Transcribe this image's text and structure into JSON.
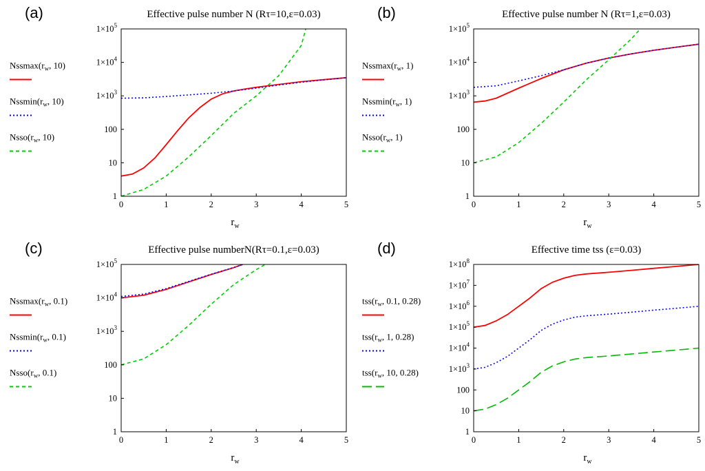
{
  "chart_data": [
    {
      "type": "line",
      "panel_label": "(a)",
      "title": "Effective pulse number N (Rτ=10,ε=0.03)",
      "xlabel": "r",
      "xlabel_sub": "w",
      "x_ticks": [
        "0",
        "1",
        "2",
        "3",
        "4",
        "5"
      ],
      "xlim": [
        0,
        5
      ],
      "y_scale": "log",
      "ylim": [
        1,
        100000
      ],
      "y_ticks": [
        {
          "main": "1",
          "exp": ""
        },
        {
          "main": "10",
          "exp": ""
        },
        {
          "main": "100",
          "exp": ""
        },
        {
          "main": "1×10",
          "exp": "3"
        },
        {
          "main": "1×10",
          "exp": "4"
        },
        {
          "main": "1×10",
          "exp": "5"
        }
      ],
      "grid": false,
      "legend_position": "left",
      "series": [
        {
          "name": "Nssmax",
          "args": ", 10)",
          "color": "#ff0000",
          "dash": "solid",
          "x": [
            0,
            0.25,
            0.5,
            0.75,
            1,
            1.25,
            1.5,
            1.75,
            2,
            2.25,
            2.5,
            2.75,
            3,
            3.5,
            4,
            4.5,
            5
          ],
          "y": [
            4,
            4.6,
            7,
            14,
            35,
            90,
            220,
            450,
            800,
            1150,
            1400,
            1600,
            1800,
            2200,
            2650,
            3050,
            3500
          ]
        },
        {
          "name": "Nssmin",
          "args": ", 10)",
          "color": "#0000ff",
          "dash": "dot",
          "x": [
            0,
            0.5,
            1,
            1.5,
            2,
            2.5,
            3,
            3.5,
            4,
            4.5,
            5
          ],
          "y": [
            850,
            870,
            960,
            1070,
            1200,
            1400,
            1700,
            2100,
            2550,
            3000,
            3500
          ]
        },
        {
          "name": "Nsso",
          "args": ", 10)",
          "color": "#00cc00",
          "dash": "dash",
          "x": [
            0,
            0.5,
            1,
            1.5,
            2,
            2.5,
            3,
            3.5,
            4,
            4.1
          ],
          "y": [
            1,
            1.6,
            4,
            15,
            65,
            300,
            1000,
            4000,
            32000,
            100000
          ]
        }
      ]
    },
    {
      "type": "line",
      "panel_label": "(b)",
      "title": "Effective pulse number N (Rτ=1,ε=0.03)",
      "xlabel": "r",
      "xlabel_sub": "w",
      "x_ticks": [
        "0",
        "1",
        "2",
        "3",
        "4",
        "5"
      ],
      "xlim": [
        0,
        5
      ],
      "y_scale": "log",
      "ylim": [
        1,
        100000
      ],
      "y_ticks": [
        {
          "main": "1",
          "exp": ""
        },
        {
          "main": "10",
          "exp": ""
        },
        {
          "main": "100",
          "exp": ""
        },
        {
          "main": "1×10",
          "exp": "3"
        },
        {
          "main": "1×10",
          "exp": "4"
        },
        {
          "main": "1×10",
          "exp": "5"
        }
      ],
      "grid": false,
      "legend_position": "left",
      "series": [
        {
          "name": "Nssmax",
          "args": ", 1)",
          "color": "#ff0000",
          "dash": "solid",
          "x": [
            0,
            0.25,
            0.5,
            1,
            1.5,
            2,
            2.5,
            3,
            3.5,
            4,
            4.5,
            5
          ],
          "y": [
            650,
            700,
            850,
            1700,
            3300,
            6000,
            9500,
            13500,
            18000,
            23000,
            28500,
            35000
          ]
        },
        {
          "name": "Nssmin",
          "args": ", 1)",
          "color": "#0000ff",
          "dash": "dot",
          "x": [
            0,
            0.5,
            1,
            1.5,
            2,
            2.5,
            3,
            3.5,
            4,
            4.5,
            5
          ],
          "y": [
            1800,
            2000,
            2800,
            4000,
            6000,
            9500,
            13500,
            18000,
            23000,
            28500,
            35000
          ]
        },
        {
          "name": "Nsso",
          "args": ", 1)",
          "color": "#00cc00",
          "dash": "dash",
          "x": [
            0,
            0.5,
            1,
            1.5,
            2,
            2.5,
            3,
            3.5,
            3.7
          ],
          "y": [
            10,
            15,
            40,
            150,
            650,
            3000,
            12000,
            50000,
            100000
          ]
        }
      ]
    },
    {
      "type": "line",
      "panel_label": "(c)",
      "title": "Effective pulse numberN(Rτ=0.1,ε=0.03)",
      "xlabel": "r",
      "xlabel_sub": "w",
      "x_ticks": [
        "0",
        "1",
        "2",
        "3",
        "4",
        "5"
      ],
      "xlim": [
        0,
        5
      ],
      "y_scale": "log",
      "ylim": [
        1,
        100000
      ],
      "y_ticks": [
        {
          "main": "1",
          "exp": ""
        },
        {
          "main": "10",
          "exp": ""
        },
        {
          "main": "100",
          "exp": ""
        },
        {
          "main": "1×10",
          "exp": "3"
        },
        {
          "main": "1×10",
          "exp": "4"
        },
        {
          "main": "1×10",
          "exp": "5"
        }
      ],
      "grid": false,
      "legend_position": "left",
      "series": [
        {
          "name": "Nssmax",
          "args": ", 0.1)",
          "color": "#ff0000",
          "dash": "solid",
          "x": [
            0,
            0.5,
            1,
            1.5,
            2,
            2.5,
            2.7
          ],
          "y": [
            10000,
            12000,
            18000,
            30000,
            50000,
            80000,
            100000
          ]
        },
        {
          "name": "Nssmin",
          "args": ", 0.1)",
          "color": "#0000ff",
          "dash": "dot",
          "x": [
            0,
            0.5,
            1,
            1.5,
            2,
            2.5,
            2.7
          ],
          "y": [
            11000,
            13000,
            19000,
            31000,
            51000,
            81000,
            100000
          ]
        },
        {
          "name": "Nsso",
          "args": ", 0.1)",
          "color": "#00cc00",
          "dash": "dash",
          "x": [
            0,
            0.5,
            1,
            1.5,
            2,
            2.5,
            3,
            3.2
          ],
          "y": [
            100,
            150,
            400,
            1500,
            6500,
            25000,
            70000,
            100000
          ]
        }
      ]
    },
    {
      "type": "line",
      "panel_label": "(d)",
      "title": "Effective time tss (ε=0.03)",
      "xlabel": "r",
      "xlabel_sub": "w",
      "x_ticks": [
        "0",
        "1",
        "2",
        "3",
        "4",
        "5"
      ],
      "xlim": [
        0,
        5
      ],
      "y_scale": "log",
      "ylim": [
        1,
        100000000
      ],
      "y_ticks": [
        {
          "main": "1",
          "exp": ""
        },
        {
          "main": "10",
          "exp": ""
        },
        {
          "main": "100",
          "exp": ""
        },
        {
          "main": "1×10",
          "exp": "3"
        },
        {
          "main": "1×10",
          "exp": "4"
        },
        {
          "main": "1×10",
          "exp": "5"
        },
        {
          "main": "1×10",
          "exp": "6"
        },
        {
          "main": "1×10",
          "exp": "7"
        },
        {
          "main": "1×10",
          "exp": "8"
        }
      ],
      "grid": false,
      "legend_position": "left",
      "series": [
        {
          "name": "tss",
          "args": ", 0.1, 0.28)",
          "color": "#ff0000",
          "dash": "solid",
          "x": [
            0,
            0.25,
            0.5,
            0.75,
            1,
            1.25,
            1.5,
            1.75,
            2,
            2.25,
            2.5,
            3,
            3.5,
            4,
            4.5,
            5
          ],
          "y": [
            100000,
            120000,
            200000,
            400000,
            1000000,
            2500000,
            7000000,
            14000000,
            22000000,
            30000000,
            35000000,
            42000000,
            52000000,
            65000000,
            80000000,
            100000000
          ]
        },
        {
          "name": "tss",
          "args": ", 1, 0.28)",
          "color": "#0000ff",
          "dash": "dot",
          "x": [
            0,
            0.25,
            0.5,
            0.75,
            1,
            1.25,
            1.5,
            1.75,
            2,
            2.25,
            2.5,
            3,
            3.5,
            4,
            4.5,
            5
          ],
          "y": [
            1000,
            1200,
            2000,
            4000,
            10000,
            25000,
            70000,
            140000,
            220000,
            300000,
            350000,
            420000,
            520000,
            650000,
            800000,
            1000000
          ]
        },
        {
          "name": "tss",
          "args": ", 10, 0.28)",
          "color": "#00bb00",
          "dash": "longdash",
          "x": [
            0,
            0.25,
            0.5,
            0.75,
            1,
            1.25,
            1.5,
            1.75,
            2,
            2.25,
            2.5,
            3,
            3.5,
            4,
            4.5,
            5
          ],
          "y": [
            10,
            12,
            20,
            40,
            100,
            250,
            700,
            1400,
            2200,
            3000,
            3500,
            4200,
            5200,
            6500,
            8000,
            10000
          ]
        }
      ]
    }
  ]
}
